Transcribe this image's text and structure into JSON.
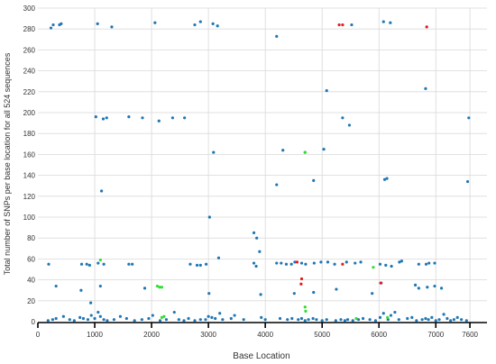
{
  "chart_data": {
    "type": "scatter",
    "title": "",
    "xlabel": "Base Location",
    "ylabel": "Total number of SNPs per base location for all 524 sequences",
    "xlim": [
      0,
      7900
    ],
    "ylim": [
      0,
      300
    ],
    "x_ticks": [
      0,
      1000,
      2000,
      3000,
      4000,
      5000,
      6000,
      7000,
      7600
    ],
    "y_ticks": [
      0,
      20,
      40,
      60,
      80,
      100,
      120,
      140,
      160,
      180,
      200,
      220,
      240,
      260,
      280,
      300
    ],
    "grid": true,
    "legend": "none",
    "series": [
      {
        "color": "#1f77b4",
        "points": [
          [
            230,
            281
          ],
          [
            270,
            284
          ],
          [
            380,
            284
          ],
          [
            410,
            285
          ],
          [
            1050,
            285
          ],
          [
            1300,
            282
          ],
          [
            2060,
            286
          ],
          [
            2760,
            284
          ],
          [
            2860,
            287
          ],
          [
            3080,
            285
          ],
          [
            3160,
            283
          ],
          [
            4200,
            273
          ],
          [
            5520,
            284
          ],
          [
            6080,
            287
          ],
          [
            6200,
            286
          ],
          [
            6820,
            223
          ],
          [
            5080,
            221
          ],
          [
            1020,
            196
          ],
          [
            1150,
            194
          ],
          [
            1210,
            195
          ],
          [
            1600,
            196
          ],
          [
            1840,
            195
          ],
          [
            2130,
            192
          ],
          [
            2370,
            195
          ],
          [
            2580,
            195
          ],
          [
            5360,
            195
          ],
          [
            5480,
            188
          ],
          [
            7580,
            195
          ],
          [
            3090,
            162
          ],
          [
            4310,
            164
          ],
          [
            4700,
            162
          ],
          [
            5030,
            165
          ],
          [
            4200,
            131
          ],
          [
            4850,
            135
          ],
          [
            6100,
            136
          ],
          [
            6140,
            137
          ],
          [
            7560,
            134
          ],
          [
            1120,
            125
          ],
          [
            3020,
            100
          ],
          [
            3800,
            85
          ],
          [
            3850,
            80
          ],
          [
            3900,
            67
          ],
          [
            3180,
            61
          ],
          [
            190,
            55
          ],
          [
            770,
            55
          ],
          [
            860,
            55
          ],
          [
            910,
            54
          ],
          [
            1060,
            56
          ],
          [
            1160,
            55
          ],
          [
            1600,
            55
          ],
          [
            1660,
            55
          ],
          [
            2680,
            55
          ],
          [
            2800,
            54
          ],
          [
            2860,
            54
          ],
          [
            2960,
            55
          ],
          [
            3800,
            56
          ],
          [
            3840,
            53
          ],
          [
            4200,
            56
          ],
          [
            4280,
            56
          ],
          [
            4370,
            55
          ],
          [
            4460,
            55
          ],
          [
            4520,
            57
          ],
          [
            4640,
            56
          ],
          [
            4710,
            55
          ],
          [
            4860,
            56
          ],
          [
            4980,
            57
          ],
          [
            5100,
            57
          ],
          [
            5220,
            55
          ],
          [
            5430,
            57
          ],
          [
            5580,
            56
          ],
          [
            5680,
            57
          ],
          [
            6020,
            55
          ],
          [
            6120,
            54
          ],
          [
            6220,
            53
          ],
          [
            6400,
            58
          ],
          [
            6700,
            55
          ],
          [
            6830,
            55
          ],
          [
            6880,
            56
          ],
          [
            6980,
            56
          ],
          [
            320,
            34
          ],
          [
            760,
            30
          ],
          [
            1100,
            34
          ],
          [
            1880,
            32
          ],
          [
            3010,
            27
          ],
          [
            3920,
            26
          ],
          [
            4510,
            27
          ],
          [
            4850,
            28
          ],
          [
            5250,
            31
          ],
          [
            5880,
            27
          ],
          [
            6360,
            57
          ],
          [
            6640,
            35
          ],
          [
            6700,
            32
          ],
          [
            6850,
            33
          ],
          [
            6980,
            34
          ],
          [
            7100,
            32
          ],
          [
            6040,
            37
          ],
          [
            930,
            18
          ],
          [
            180,
            1
          ],
          [
            260,
            2
          ],
          [
            320,
            3
          ],
          [
            450,
            5
          ],
          [
            560,
            2
          ],
          [
            640,
            1
          ],
          [
            740,
            4
          ],
          [
            800,
            3
          ],
          [
            880,
            2
          ],
          [
            940,
            6
          ],
          [
            1000,
            3
          ],
          [
            1060,
            9
          ],
          [
            1100,
            5
          ],
          [
            1160,
            2
          ],
          [
            1220,
            1
          ],
          [
            1340,
            2
          ],
          [
            1450,
            5
          ],
          [
            1560,
            3
          ],
          [
            1700,
            1
          ],
          [
            1830,
            2
          ],
          [
            1950,
            3
          ],
          [
            2020,
            6
          ],
          [
            2150,
            1
          ],
          [
            2260,
            2
          ],
          [
            2400,
            9
          ],
          [
            2480,
            2
          ],
          [
            2570,
            1
          ],
          [
            2650,
            3
          ],
          [
            2760,
            1
          ],
          [
            2860,
            2
          ],
          [
            2950,
            2
          ],
          [
            3000,
            5
          ],
          [
            3060,
            4
          ],
          [
            3120,
            3
          ],
          [
            3200,
            8
          ],
          [
            3250,
            2
          ],
          [
            3400,
            3
          ],
          [
            3460,
            6
          ],
          [
            3620,
            2
          ],
          [
            3930,
            4
          ],
          [
            4000,
            2
          ],
          [
            4260,
            3
          ],
          [
            4390,
            2
          ],
          [
            4470,
            3
          ],
          [
            4580,
            2
          ],
          [
            4640,
            3
          ],
          [
            4700,
            1
          ],
          [
            4760,
            2
          ],
          [
            4840,
            3
          ],
          [
            4900,
            2
          ],
          [
            5000,
            1
          ],
          [
            5080,
            2
          ],
          [
            5240,
            1
          ],
          [
            5330,
            2
          ],
          [
            5400,
            1
          ],
          [
            5450,
            2
          ],
          [
            5540,
            1
          ],
          [
            5640,
            2
          ],
          [
            5720,
            3
          ],
          [
            5840,
            2
          ],
          [
            5940,
            1
          ],
          [
            6020,
            4
          ],
          [
            6080,
            8
          ],
          [
            6160,
            2
          ],
          [
            6210,
            6
          ],
          [
            6280,
            9
          ],
          [
            6350,
            2
          ],
          [
            6500,
            3
          ],
          [
            6580,
            4
          ],
          [
            6660,
            1
          ],
          [
            6760,
            2
          ],
          [
            6820,
            3
          ],
          [
            6870,
            2
          ],
          [
            6930,
            4
          ],
          [
            7000,
            1
          ],
          [
            7060,
            2
          ],
          [
            7140,
            7
          ],
          [
            7200,
            3
          ],
          [
            7260,
            1
          ],
          [
            7320,
            2
          ],
          [
            7380,
            4
          ],
          [
            7450,
            2
          ],
          [
            7540,
            1
          ]
        ]
      },
      {
        "color": "#e41a1c",
        "points": [
          [
            6840,
            282
          ],
          [
            5300,
            284
          ],
          [
            5360,
            284
          ],
          [
            4640,
            41
          ],
          [
            4630,
            36
          ],
          [
            5360,
            55
          ],
          [
            6030,
            37
          ],
          [
            4560,
            57
          ]
        ]
      },
      {
        "color": "#33dd33",
        "points": [
          [
            1100,
            59
          ],
          [
            2100,
            34
          ],
          [
            2140,
            33
          ],
          [
            2180,
            33
          ],
          [
            2180,
            4
          ],
          [
            2220,
            5
          ],
          [
            4700,
            162
          ],
          [
            4700,
            14
          ],
          [
            4710,
            10
          ],
          [
            5900,
            52
          ],
          [
            5600,
            3
          ],
          [
            6150,
            4
          ]
        ]
      }
    ]
  }
}
